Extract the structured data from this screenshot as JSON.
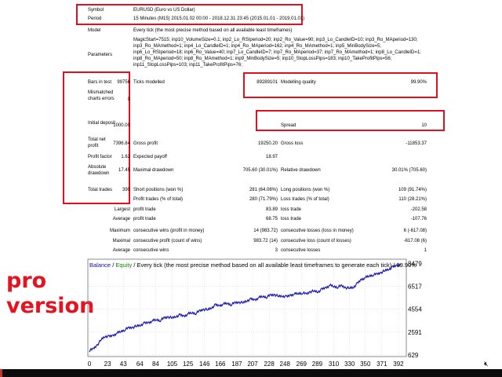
{
  "report": {
    "symbol": {
      "label": "Symbol",
      "value": "EURUSD (Euro vs US Dollar)"
    },
    "period": {
      "label": "Period",
      "value": "15 Minutes (M15) 2015.01.02 00:00 - 2018.12.31 23:45 (2015.01.01 - 2019.01.01)"
    },
    "model": {
      "label": "Model",
      "value": "Every tick (the most precise method based on all available least timeframes)"
    },
    "parameters": {
      "label": "Parameters",
      "value": "MagicStart=7515; inp10_VolumeSize=0.1; inp2_Lo_RSIperiod=20; inp2_Ro_Value=90; inp3_Lo_CandleID=10; inp3_Ro_MAperiod=130; inp3_Ro_MAmethod=1; inp4_Lo_CandleID=1; inp4_Ro_MAperiod=162; inp4_Ro_MAmethod=1; inp5_MinBodySize=5; inp6_Lo_RSIperiod=18; inp6_Ro_Value=40; inp7_Lo_CandleID=7; inp7_Ro_MAperiod=37; inp7_Ro_MAmethod=1; inp8_Lo_CandleID=1; inp8_Ro_MAperiod=50; inp8_Ro_MAmethod=1; inp9_MinBodySize=5; inp10_StopLossPips=183; inp10_TakeProfitPips=56; inp11_StopLossPips=103; inp11_TakeProfitPips=76;"
    },
    "bars_in_test": {
      "label": "Bars in test",
      "value": "99756"
    },
    "ticks_modelled": {
      "label": "Ticks modelled",
      "value": "89289101"
    },
    "modelling_quality": {
      "label": "Modelling quality",
      "value": "99.90%"
    },
    "mismatched": {
      "label": "Mismatched charts errors",
      "value": "0"
    },
    "initial_deposit": {
      "label": "Initial deposit",
      "value": "1000.00"
    },
    "spread": {
      "label": "Spread",
      "value": "10"
    },
    "total_net_profit": {
      "label": "Total net profit",
      "value": "7396.84"
    },
    "gross_profit": {
      "label": "Gross profit",
      "value": "19250.20"
    },
    "gross_loss": {
      "label": "Gross loss",
      "value": "-11853.37"
    },
    "profit_factor": {
      "label": "Profit factor",
      "value": "1.62"
    },
    "expected_payoff": {
      "label": "Expected payoff",
      "value": "18.97"
    },
    "absolute_drawdown": {
      "label": "Absolute drawdown",
      "value": "17.45"
    },
    "maximal_drawdown": {
      "label": "Maximal drawdown",
      "value": "705.60 (30.01%)"
    },
    "relative_drawdown": {
      "label": "Relative drawdown",
      "value": "30.01% (705.60)"
    },
    "total_trades": {
      "label": "Total trades",
      "value": "390"
    },
    "short_positions": {
      "label": "Short positions (won %)",
      "value": "281 (64.06%)"
    },
    "long_positions": {
      "label": "Long positions (won %)",
      "value": "109 (91.74%)"
    },
    "profit_trades": {
      "label": "Profit trades (% of total)",
      "value": "280 (71.79%)"
    },
    "loss_trades": {
      "label": "Loss trades (% of total)",
      "value": "110 (28.21%)"
    },
    "largest": {
      "prefix": "Largest",
      "profit_label": "profit trade",
      "profit_value": "83.89",
      "loss_label": "loss trade",
      "loss_value": "-202.58"
    },
    "average": {
      "prefix": "Average",
      "profit_label": "profit trade",
      "profit_value": "68.75",
      "loss_label": "loss trade",
      "loss_value": "-107.76"
    },
    "maximum": {
      "prefix": "Maximum",
      "wins_label": "consecutive wins (profit in money)",
      "wins_value": "14 (983.72)",
      "losses_label": "consecutive losses (loss in money)",
      "losses_value": "6 (-617.08)"
    },
    "maximal": {
      "prefix": "Maximal",
      "wins_label": "consecutive profit (count of wins)",
      "wins_value": "983.72 (14)",
      "losses_label": "consecutive loss (count of losses)",
      "losses_value": "-617.08 (6)"
    },
    "average_consec": {
      "prefix": "Average",
      "wins_label": "consecutive wins",
      "wins_value": "3",
      "losses_label": "consecutive losses",
      "losses_value": "1"
    }
  },
  "overlay": {
    "line1": "pro",
    "line2": "version"
  },
  "chart_data": {
    "type": "line",
    "title_parts": {
      "balance": "Balance",
      "sep": " / ",
      "equity": "Equity",
      "rest": " / Every tick (the most precise method based on all available least timeframes to generate each tick) / 99.90%"
    },
    "colors": {
      "balance": "#1010a0",
      "equity": "#0a8a0a",
      "line": "#1a1ab0",
      "grid": "#c8c8c8"
    },
    "xlim": [
      0,
      400
    ],
    "ylim": [
      629,
      8700
    ],
    "x_ticks": [
      "0",
      "23",
      "43",
      "64",
      "84",
      "105",
      "125",
      "146",
      "166",
      "187",
      "207",
      "228",
      "248",
      "269",
      "289",
      "310",
      "330",
      "350",
      "371",
      "392"
    ],
    "y_ticks": [
      "8479",
      "6517",
      "4554",
      "2591",
      "629"
    ],
    "y_tick_values": [
      8479,
      6517,
      4554,
      2591,
      629
    ],
    "series": [
      {
        "values": [
          [
            0,
            1000
          ],
          [
            5,
            1150
          ],
          [
            10,
            1500
          ],
          [
            15,
            1950
          ],
          [
            20,
            2250
          ],
          [
            25,
            2200
          ],
          [
            30,
            2300
          ],
          [
            35,
            2500
          ],
          [
            40,
            2650
          ],
          [
            45,
            2800
          ],
          [
            50,
            2950
          ],
          [
            55,
            3000
          ],
          [
            60,
            3100
          ],
          [
            65,
            3200
          ],
          [
            70,
            3350
          ],
          [
            75,
            3400
          ],
          [
            80,
            3550
          ],
          [
            85,
            3650
          ],
          [
            90,
            3600
          ],
          [
            95,
            3800
          ],
          [
            100,
            3900
          ],
          [
            105,
            3800
          ],
          [
            110,
            3950
          ],
          [
            115,
            4050
          ],
          [
            120,
            3950
          ],
          [
            125,
            4150
          ],
          [
            130,
            4250
          ],
          [
            135,
            4200
          ],
          [
            140,
            4400
          ],
          [
            145,
            4550
          ],
          [
            150,
            4500
          ],
          [
            155,
            4700
          ],
          [
            160,
            4900
          ],
          [
            165,
            4850
          ],
          [
            170,
            5000
          ],
          [
            175,
            5050
          ],
          [
            180,
            4950
          ],
          [
            185,
            5100
          ],
          [
            190,
            5150
          ],
          [
            195,
            5100
          ],
          [
            200,
            5300
          ],
          [
            205,
            5400
          ],
          [
            210,
            5350
          ],
          [
            215,
            5550
          ],
          [
            220,
            5650
          ],
          [
            225,
            5600
          ],
          [
            230,
            5750
          ],
          [
            235,
            5800
          ],
          [
            240,
            5650
          ],
          [
            245,
            5700
          ],
          [
            250,
            5600
          ],
          [
            255,
            5750
          ],
          [
            260,
            5850
          ],
          [
            265,
            5900
          ],
          [
            270,
            5950
          ],
          [
            275,
            5850
          ],
          [
            280,
            6050
          ],
          [
            285,
            6100
          ],
          [
            290,
            6050
          ],
          [
            295,
            6250
          ],
          [
            300,
            6400
          ],
          [
            305,
            6600
          ],
          [
            310,
            6500
          ],
          [
            315,
            6450
          ],
          [
            320,
            6550
          ],
          [
            325,
            6400
          ],
          [
            330,
            6350
          ],
          [
            335,
            6450
          ],
          [
            340,
            6750
          ],
          [
            345,
            7100
          ],
          [
            350,
            7250
          ],
          [
            355,
            7400
          ],
          [
            360,
            7500
          ],
          [
            365,
            7550
          ],
          [
            370,
            7700
          ],
          [
            375,
            7850
          ],
          [
            380,
            8000
          ],
          [
            385,
            8150
          ],
          [
            390,
            8300
          ],
          [
            395,
            8400
          ]
        ]
      }
    ]
  }
}
